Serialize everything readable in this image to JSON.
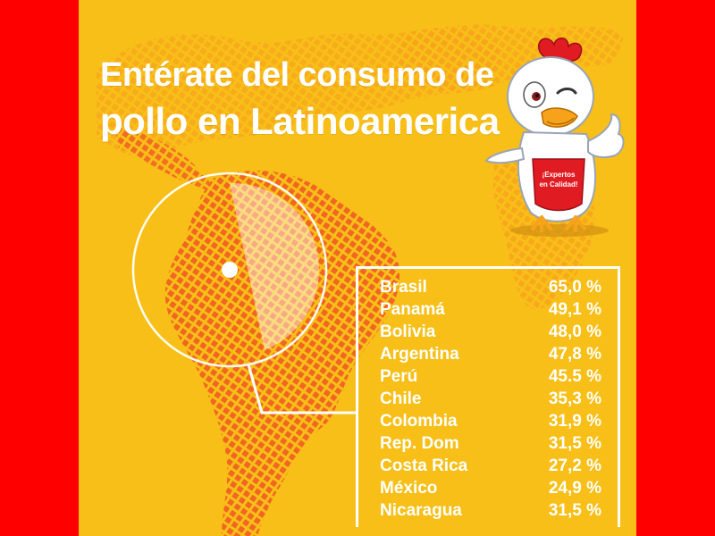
{
  "title": {
    "line1": "Entérate del consumo de",
    "line2": "pollo en Latinoamerica"
  },
  "mascot": {
    "apron_text_line1": "¡Expertos",
    "apron_text_line2": "en Calidad!"
  },
  "colors": {
    "background": "#ff0000",
    "poster": "#f7bf17",
    "map": "#f26522",
    "text": "#ffffff"
  },
  "consumption": [
    {
      "country": "Brasil",
      "value": "65,0 %"
    },
    {
      "country": "Panamá",
      "value": "49,1 %"
    },
    {
      "country": "Bolivia",
      "value": "48,0 %"
    },
    {
      "country": "Argentina",
      "value": "47,8 %"
    },
    {
      "country": "Perú",
      "value": "45.5 %"
    },
    {
      "country": "Chile",
      "value": "35,3 %"
    },
    {
      "country": "Colombia",
      "value": "31,9 %"
    },
    {
      "country": "Rep. Dom",
      "value": "31,5 %"
    },
    {
      "country": "Costa Rica",
      "value": "27,2 %"
    },
    {
      "country": "México",
      "value": "24,9 %"
    },
    {
      "country": "Nicaragua",
      "value": "31,5 %"
    }
  ]
}
